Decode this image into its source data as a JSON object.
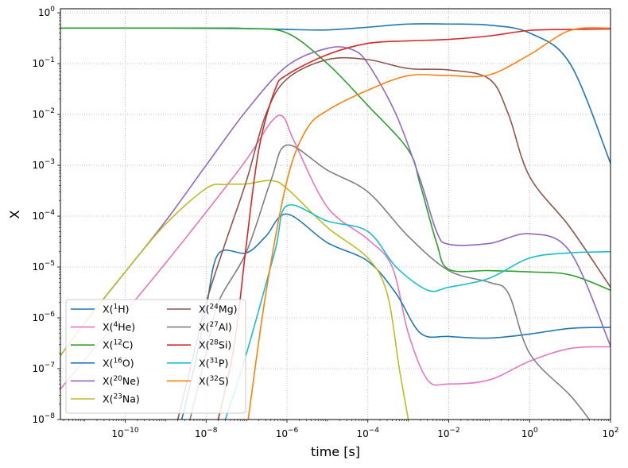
{
  "chart_data": {
    "type": "line",
    "title": "",
    "xlabel": "time [s]",
    "ylabel": "X",
    "xscale": "log",
    "yscale": "log",
    "xlim": [
      2.5e-12,
      100
    ],
    "ylim": [
      1e-08,
      1.2
    ],
    "grid": true,
    "legend_placement": "lower-left",
    "legend_columns": 2,
    "x_ticks": [
      {
        "value": 1e-10,
        "base": "10",
        "exp": "−10"
      },
      {
        "value": 1e-08,
        "base": "10",
        "exp": "−8"
      },
      {
        "value": 1e-06,
        "base": "10",
        "exp": "−6"
      },
      {
        "value": 0.0001,
        "base": "10",
        "exp": "−4"
      },
      {
        "value": 0.01,
        "base": "10",
        "exp": "−2"
      },
      {
        "value": 1,
        "base": "10",
        "exp": "0"
      },
      {
        "value": 100,
        "base": "10",
        "exp": "2"
      }
    ],
    "y_ticks": [
      {
        "value": 1e-08,
        "base": "10",
        "exp": "−8"
      },
      {
        "value": 1e-07,
        "base": "10",
        "exp": "−7"
      },
      {
        "value": 1e-06,
        "base": "10",
        "exp": "−6"
      },
      {
        "value": 1e-05,
        "base": "10",
        "exp": "−5"
      },
      {
        "value": 0.0001,
        "base": "10",
        "exp": "−4"
      },
      {
        "value": 0.001,
        "base": "10",
        "exp": "−3"
      },
      {
        "value": 0.01,
        "base": "10",
        "exp": "−2"
      },
      {
        "value": 0.1,
        "base": "10",
        "exp": "−1"
      },
      {
        "value": 1,
        "base": "10",
        "exp": "0"
      }
    ],
    "series": [
      {
        "id": "h1",
        "label_pre": "X(",
        "mass": "1",
        "elem": "H)",
        "color": "#1f77b4",
        "points": [
          [
            2.5e-12,
            0.5
          ],
          [
            1e-09,
            0.5
          ],
          [
            1e-07,
            0.49
          ],
          [
            1e-06,
            0.47
          ],
          [
            1e-05,
            0.46
          ],
          [
            0.0001,
            0.52
          ],
          [
            0.001,
            0.6
          ],
          [
            0.01,
            0.6
          ],
          [
            0.1,
            0.57
          ],
          [
            1,
            0.4
          ],
          [
            10,
            0.1
          ],
          [
            100,
            0.0011
          ]
        ]
      },
      {
        "id": "he4",
        "label_pre": "X(",
        "mass": "4",
        "elem": "He)",
        "color": "#e377c2",
        "points": [
          [
            2.5e-12,
            4e-08
          ],
          [
            1e-11,
            1.5e-07
          ],
          [
            1e-10,
            1.3e-06
          ],
          [
            1e-09,
            1.2e-05
          ],
          [
            1e-08,
            0.00012
          ],
          [
            1e-07,
            0.0013
          ],
          [
            4e-07,
            0.007
          ],
          [
            8e-07,
            0.009
          ],
          [
            1.5e-06,
            0.003
          ],
          [
            1e-05,
            0.00015
          ],
          [
            0.0001,
            3.5e-05
          ],
          [
            0.0004,
            1e-05
          ],
          [
            0.001,
            5e-07
          ],
          [
            0.003,
            6e-08
          ],
          [
            0.01,
            5e-08
          ],
          [
            0.1,
            6e-08
          ],
          [
            1,
            1.4e-07
          ],
          [
            10,
            2.5e-07
          ],
          [
            100,
            2.7e-07
          ]
        ]
      },
      {
        "id": "c12",
        "label_pre": "X(",
        "mass": "12",
        "elem": "C)",
        "color": "#2ca02c",
        "points": [
          [
            2.5e-12,
            0.5
          ],
          [
            1e-08,
            0.5
          ],
          [
            1e-07,
            0.49
          ],
          [
            1e-06,
            0.4
          ],
          [
            1e-05,
            0.1
          ],
          [
            0.0001,
            0.015
          ],
          [
            0.001,
            0.002
          ],
          [
            0.002,
            0.0004
          ],
          [
            0.005,
            3e-05
          ],
          [
            0.01,
            9e-06
          ],
          [
            0.1,
            8.5e-06
          ],
          [
            1,
            8e-06
          ],
          [
            10,
            7e-06
          ],
          [
            100,
            3.5e-06
          ]
        ]
      },
      {
        "id": "o16",
        "label_pre": "X(",
        "mass": "16",
        "elem": "O)",
        "color": "#1f77b4",
        "points": [
          [
            2.5e-09,
            1e-08
          ],
          [
            5e-09,
            1e-07
          ],
          [
            1e-08,
            1.5e-06
          ],
          [
            2e-08,
            1.8e-05
          ],
          [
            1e-07,
            1.9e-05
          ],
          [
            3e-07,
            4e-05
          ],
          [
            1e-06,
            0.00011
          ],
          [
            1e-05,
            3e-05
          ],
          [
            0.0001,
            1.3e-05
          ],
          [
            0.0005,
            3e-06
          ],
          [
            0.002,
            5e-07
          ],
          [
            0.01,
            4.3e-07
          ],
          [
            0.1,
            4e-07
          ],
          [
            1,
            4.8e-07
          ],
          [
            10,
            6.2e-07
          ],
          [
            100,
            6.5e-07
          ]
        ]
      },
      {
        "id": "ne20",
        "label_pre": "X(",
        "mass": "20",
        "elem": "Ne)",
        "color": "#9467bd",
        "points": [
          [
            2.5e-12,
            1.8e-07
          ],
          [
            1e-11,
            8e-07
          ],
          [
            1e-10,
            8e-06
          ],
          [
            1e-09,
            8e-05
          ],
          [
            1e-08,
            0.001
          ],
          [
            1e-07,
            0.012
          ],
          [
            1e-06,
            0.09
          ],
          [
            1e-05,
            0.2
          ],
          [
            4e-05,
            0.19
          ],
          [
            0.0001,
            0.1
          ],
          [
            0.0005,
            0.01
          ],
          [
            0.002,
            0.0005
          ],
          [
            0.005,
            5e-05
          ],
          [
            0.01,
            2.8e-05
          ],
          [
            0.1,
            2.9e-05
          ],
          [
            1,
            4.5e-05
          ],
          [
            10,
            2e-05
          ],
          [
            100,
            2.8e-07
          ]
        ]
      },
      {
        "id": "na23",
        "label_pre": "X(",
        "mass": "23",
        "elem": "Na)",
        "color": "#bcbd22",
        "points": [
          [
            2.5e-12,
            1.8e-07
          ],
          [
            1e-11,
            8e-07
          ],
          [
            1e-10,
            8e-06
          ],
          [
            1e-09,
            7e-05
          ],
          [
            1e-08,
            0.00035
          ],
          [
            3e-08,
            0.00042
          ],
          [
            1e-07,
            0.00043
          ],
          [
            4e-07,
            0.0005
          ],
          [
            1e-06,
            0.00035
          ],
          [
            1e-05,
            6e-05
          ],
          [
            0.0001,
            1.5e-05
          ],
          [
            0.0003,
            3e-06
          ],
          [
            0.0006,
            1e-07
          ],
          [
            0.001,
            1e-08
          ]
        ]
      },
      {
        "id": "mg24",
        "label_pre": "X(",
        "mass": "24",
        "elem": "Mg)",
        "color": "#8c564b",
        "points": [
          [
            2e-09,
            1e-08
          ],
          [
            5e-09,
            2e-07
          ],
          [
            1e-08,
            2e-06
          ],
          [
            3e-08,
            3e-05
          ],
          [
            1e-07,
            0.0005
          ],
          [
            3e-07,
            0.01
          ],
          [
            1e-06,
            0.05
          ],
          [
            1e-05,
            0.12
          ],
          [
            0.0001,
            0.12
          ],
          [
            0.001,
            0.08
          ],
          [
            0.01,
            0.075
          ],
          [
            0.1,
            0.05
          ],
          [
            0.3,
            0.01
          ],
          [
            1,
            0.0006
          ],
          [
            10,
            6e-05
          ],
          [
            100,
            4e-06
          ]
        ]
      },
      {
        "id": "al27",
        "label_pre": "X(",
        "mass": "27",
        "elem": "Al)",
        "color": "#7f7f7f",
        "points": [
          [
            4e-09,
            1e-08
          ],
          [
            1e-08,
            2e-07
          ],
          [
            2e-08,
            2e-06
          ],
          [
            1e-07,
            2e-05
          ],
          [
            4e-07,
            0.0005
          ],
          [
            1e-06,
            0.0025
          ],
          [
            1e-05,
            0.0008
          ],
          [
            0.0001,
            0.0003
          ],
          [
            0.001,
            4e-05
          ],
          [
            0.01,
            8.5e-06
          ],
          [
            0.1,
            5e-06
          ],
          [
            0.3,
            3e-06
          ],
          [
            1,
            2e-07
          ],
          [
            10,
            3e-08
          ],
          [
            30,
            1e-08
          ]
        ]
      },
      {
        "id": "si28",
        "label_pre": "X(",
        "mass": "28",
        "elem": "Si)",
        "color": "#d62728",
        "points": [
          [
            2e-08,
            1e-08
          ],
          [
            5e-08,
            3e-07
          ],
          [
            1e-07,
            3e-05
          ],
          [
            2e-07,
            0.002
          ],
          [
            5e-07,
            0.03
          ],
          [
            1e-06,
            0.06
          ],
          [
            1e-05,
            0.15
          ],
          [
            0.0001,
            0.25
          ],
          [
            0.001,
            0.28
          ],
          [
            0.01,
            0.3
          ],
          [
            0.1,
            0.35
          ],
          [
            1,
            0.45
          ],
          [
            10,
            0.47
          ],
          [
            100,
            0.48
          ]
        ]
      },
      {
        "id": "p31",
        "label_pre": "X(",
        "mass": "31",
        "elem": "P)",
        "color": "#17becf",
        "points": [
          [
            3e-08,
            1e-08
          ],
          [
            1e-07,
            2e-07
          ],
          [
            5e-07,
            2e-05
          ],
          [
            1e-06,
            0.00016
          ],
          [
            1e-05,
            8e-05
          ],
          [
            0.0001,
            5e-05
          ],
          [
            0.0005,
            1e-05
          ],
          [
            0.003,
            3.5e-06
          ],
          [
            0.01,
            4e-06
          ],
          [
            0.1,
            6e-06
          ],
          [
            1,
            1.5e-05
          ],
          [
            10,
            1.9e-05
          ],
          [
            100,
            2e-05
          ]
        ]
      },
      {
        "id": "s32",
        "label_pre": "X(",
        "mass": "32",
        "elem": "S)",
        "color": "#ff7f0e",
        "points": [
          [
            1.1e-07,
            1e-08
          ],
          [
            3e-07,
            3e-06
          ],
          [
            1e-06,
            0.0005
          ],
          [
            3e-06,
            0.005
          ],
          [
            1e-05,
            0.012
          ],
          [
            0.0001,
            0.03
          ],
          [
            0.001,
            0.058
          ],
          [
            0.01,
            0.058
          ],
          [
            0.1,
            0.06
          ],
          [
            1,
            0.15
          ],
          [
            10,
            0.45
          ],
          [
            100,
            0.5
          ]
        ]
      }
    ]
  }
}
